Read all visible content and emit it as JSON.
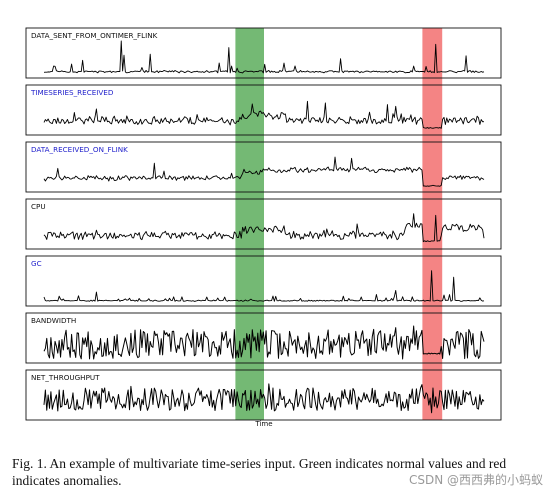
{
  "chart_data": {
    "type": "line",
    "xlabel": "Time",
    "bands": [
      {
        "label": "normal",
        "color": "#3f9e3f",
        "start": 0.435,
        "end": 0.5
      },
      {
        "label": "anomaly",
        "color": "#f05555",
        "start": 0.86,
        "end": 0.905
      }
    ],
    "series": [
      {
        "name": "DATA_SENT_FROM_ONTIMER_FLINK",
        "label_color": "#111111",
        "style": "spiky",
        "seed": 11,
        "base": 0.07,
        "noise": 0.05,
        "spike_prob": 0.07,
        "spike_amp": 0.5,
        "spikes": [
          [
            0.175,
            1.0
          ],
          [
            0.24,
            0.6
          ],
          [
            0.42,
            0.8
          ],
          [
            0.89,
            0.9
          ],
          [
            0.96,
            0.55
          ]
        ]
      },
      {
        "name": "TIMESERIES_RECEIVED",
        "label_color": "#2222cc",
        "style": "noisy",
        "seed": 23,
        "base": 0.32,
        "noise": 0.18,
        "spike_prob": 0.04,
        "spike_amp": 0.35,
        "shifts": [
          [
            0.45,
            0.55,
            0.48
          ]
        ],
        "drops": [
          [
            0.86,
            0.905,
            0.08
          ]
        ],
        "spikes": [
          [
            0.6,
            0.9
          ],
          [
            0.64,
            0.85
          ],
          [
            0.78,
            0.8
          ]
        ]
      },
      {
        "name": "DATA_RECEIVED_ON_FLINK",
        "label_color": "#2222cc",
        "style": "noisy",
        "seed": 37,
        "base": 0.3,
        "noise": 0.12,
        "spike_prob": 0.04,
        "spike_amp": 0.4,
        "shifts": [
          [
            0.45,
            0.5,
            0.5
          ],
          [
            0.5,
            0.86,
            0.55
          ]
        ],
        "drops": [
          [
            0.86,
            0.905,
            0.05
          ]
        ],
        "spikes": [
          [
            0.25,
            0.75
          ],
          [
            0.7,
            0.9
          ]
        ]
      },
      {
        "name": "CPU",
        "label_color": "#111111",
        "style": "noisy",
        "seed": 41,
        "base": 0.3,
        "noise": 0.2,
        "spike_prob": 0.02,
        "spike_amp": 0.3,
        "shifts": [
          [
            0.45,
            0.55,
            0.45
          ],
          [
            0.82,
            0.86,
            0.6
          ],
          [
            0.905,
            1.0,
            0.55
          ]
        ],
        "drops": [
          [
            0.86,
            0.9,
            0.1
          ]
        ],
        "spikes": [
          [
            0.84,
            0.95
          ],
          [
            0.89,
            0.9
          ]
        ]
      },
      {
        "name": "GC",
        "label_color": "#2222cc",
        "style": "spiky",
        "seed": 53,
        "base": 0.04,
        "noise": 0.03,
        "spike_prob": 0.12,
        "spike_amp": 0.2,
        "spikes": [
          [
            0.12,
            0.3
          ],
          [
            0.88,
            0.95
          ],
          [
            0.93,
            0.75
          ],
          [
            0.8,
            0.35
          ]
        ]
      },
      {
        "name": "BANDWIDTH",
        "label_color": "#111111",
        "style": "dense",
        "seed": 67,
        "base": 0.45,
        "noise": 0.45,
        "spike_prob": 0.0,
        "spike_amp": 0.0,
        "drops": [
          [
            0.865,
            0.9,
            0.15
          ]
        ],
        "spikes": [
          [
            0.8,
            0.95
          ],
          [
            0.84,
            1.0
          ]
        ]
      },
      {
        "name": "NET_THROUGHPUT",
        "label_color": "#111111",
        "style": "dense",
        "seed": 79,
        "base": 0.5,
        "noise": 0.35,
        "spike_prob": 0.02,
        "spike_amp": 0.3,
        "spikes": [
          [
            0.86,
            0.95
          ],
          [
            0.88,
            0.1
          ]
        ]
      }
    ]
  },
  "caption": "Fig. 1.  An example of multivariate time-series input. Green indicates normal values and red indicates anomalies.",
  "watermark": "CSDN @西西弗的小蚂蚁"
}
